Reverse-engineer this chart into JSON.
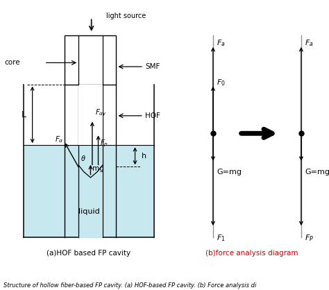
{
  "fig_width": 4.74,
  "fig_height": 4.18,
  "dpi": 100,
  "bg_color": "#ffffff",
  "caption_a": "(a)HOF based FP cavity",
  "caption_b": "(b)force analysis diagram",
  "caption_b_color": "#cc0000",
  "bottom_text": "Structure of hollow fiber-based FP cavity. (a) HOF-based FP cavity. (b) Force analysis di",
  "label_color": "#000000",
  "liquid_color": "#c8e8f0",
  "gray_line": "#909090"
}
